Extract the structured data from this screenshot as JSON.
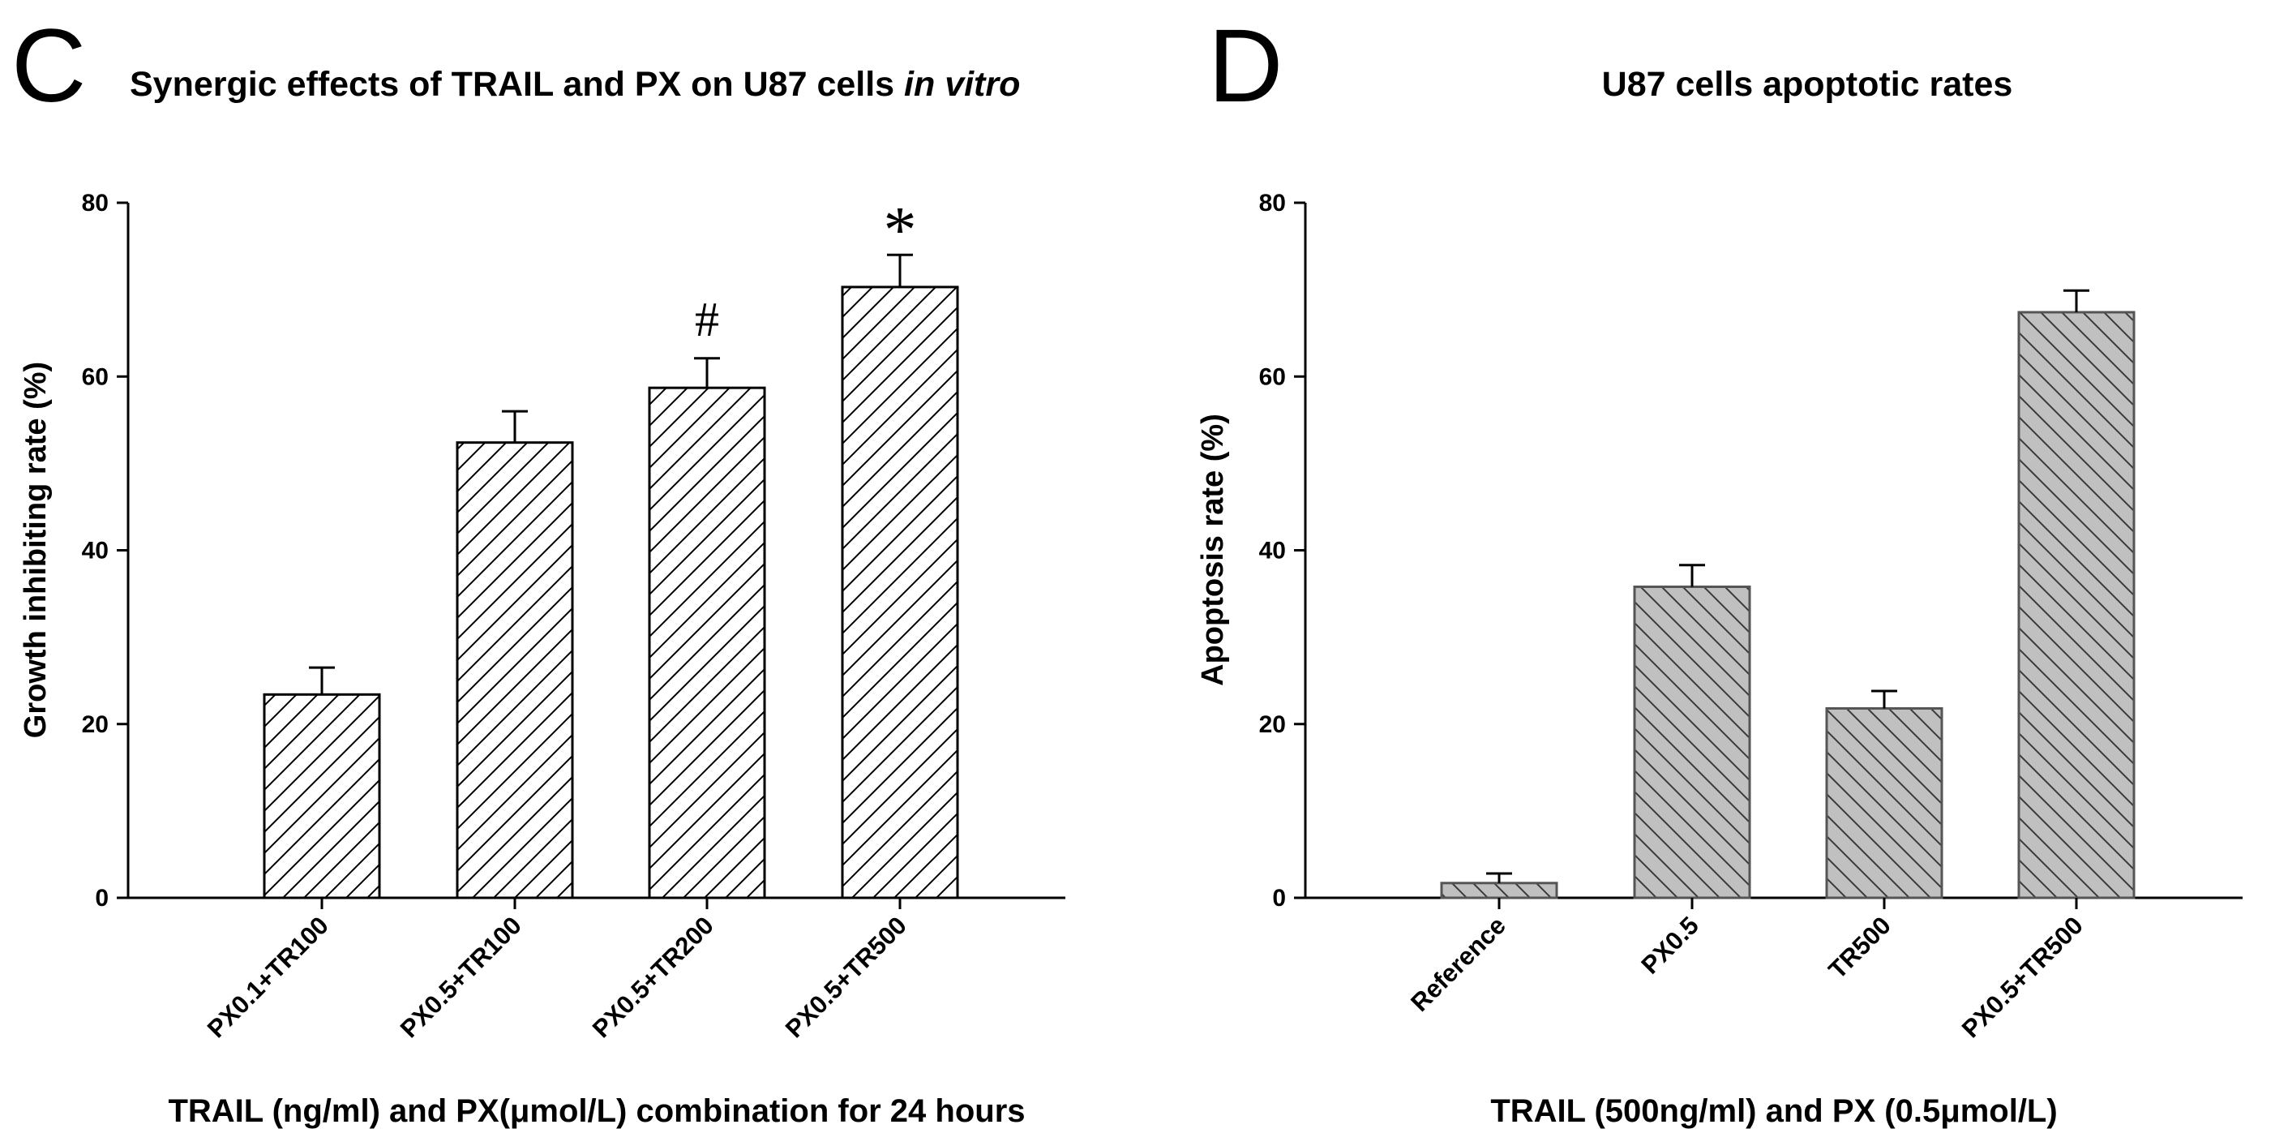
{
  "panels": [
    {
      "letter": "C",
      "title_main": "Synergic effects of TRAIL and PX on U87 cells ",
      "title_italic": "in vitro",
      "ylabel": "Growth inhibiting rate (%)",
      "xlabel": "TRAIL (ng/ml) and PX(μmol/L) combination for 24 hours",
      "yticks": [
        "0",
        "20",
        "40",
        "60",
        "80"
      ]
    },
    {
      "letter": "D",
      "title_main": "U87 cells apoptotic rates",
      "title_italic": "",
      "ylabel": "Apoptosis rate (%)",
      "xlabel": "TRAIL (500ng/ml) and PX (0.5μmol/L)",
      "yticks": [
        "0",
        "20",
        "40",
        "60",
        "80"
      ]
    }
  ],
  "chart_data": [
    {
      "type": "bar",
      "title": "Synergic effects of TRAIL and PX on U87 cells in vitro",
      "xlabel": "TRAIL (ng/ml) and PX(μmol/L) combination for 24 hours",
      "ylabel": "Growth inhibiting rate (%)",
      "ylim": [
        0,
        80
      ],
      "yticks": [
        0,
        20,
        40,
        60,
        80
      ],
      "categories": [
        "PX0.1+TR100",
        "PX0.5+TR100",
        "PX0.5+TR200",
        "PX0.5+TR500"
      ],
      "values": [
        23.4,
        52.4,
        58.7,
        70.3
      ],
      "error": [
        3.1,
        3.6,
        3.4,
        3.7
      ],
      "annotations": [
        "",
        "",
        "#",
        "*"
      ],
      "fill": "#ffffff",
      "hatch": "forward-diagonal",
      "grid": false
    },
    {
      "type": "bar",
      "title": "U87 cells apoptotic rates",
      "xlabel": "TRAIL (500ng/ml) and PX (0.5μmol/L)",
      "ylabel": "Apoptosis rate (%)",
      "ylim": [
        0,
        80
      ],
      "yticks": [
        0,
        20,
        40,
        60,
        80
      ],
      "categories": [
        "Reference",
        "PX0.5",
        "TR500",
        "PX0.5+TR500"
      ],
      "values": [
        1.7,
        35.8,
        21.8,
        67.4
      ],
      "error": [
        1.1,
        2.5,
        2.0,
        2.5
      ],
      "annotations": [
        "",
        "",
        "",
        ""
      ],
      "fill": "#c0c0c0",
      "hatch": "backward-diagonal",
      "grid": false
    }
  ]
}
